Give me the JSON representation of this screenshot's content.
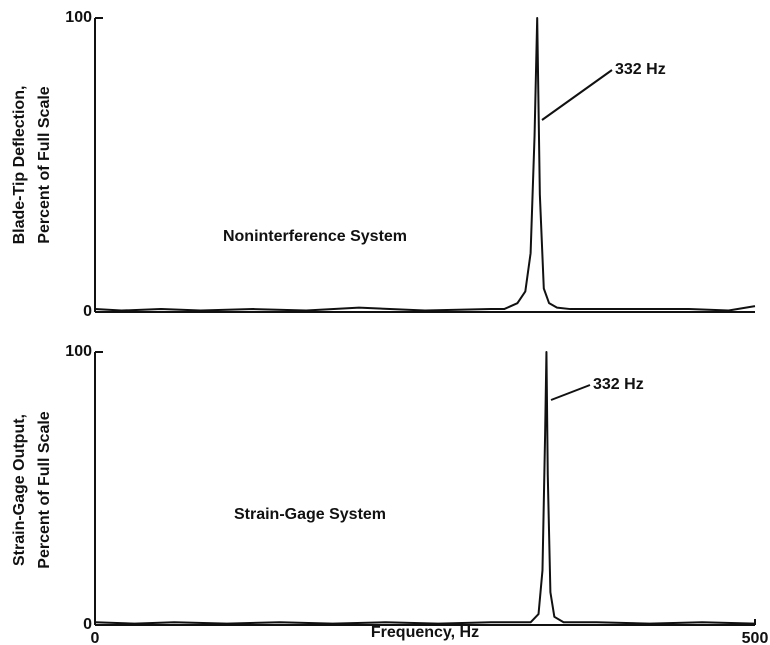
{
  "chart_data": [
    {
      "type": "line",
      "ylabel": [
        "Blade-Tip Deflection,",
        "Percent of Full Scale"
      ],
      "label": "Noninterference System",
      "annotation": "332 Hz",
      "xlim": [
        0,
        500
      ],
      "ylim": [
        0,
        100
      ],
      "yticks": [
        0,
        100
      ],
      "series": [
        {
          "name": "Noninterference System",
          "color": "#111111",
          "x": [
            0,
            20,
            50,
            80,
            120,
            160,
            200,
            250,
            300,
            310,
            320,
            326,
            330,
            333,
            335,
            337,
            340,
            344,
            350,
            360,
            400,
            450,
            480,
            500
          ],
          "values": [
            1,
            0.5,
            1,
            0.5,
            1,
            0.5,
            1.5,
            0.5,
            1,
            1,
            3,
            7,
            20,
            60,
            100,
            40,
            8,
            3,
            1.5,
            1,
            1,
            1,
            0.5,
            2
          ]
        }
      ]
    },
    {
      "type": "line",
      "ylabel": [
        "Strain-Gage Output,",
        "Percent of Full Scale"
      ],
      "label": "Strain-Gage System",
      "annotation": "332 Hz",
      "xlabel": "Frequency, Hz",
      "xlim": [
        0,
        500
      ],
      "ylim": [
        0,
        100
      ],
      "yticks": [
        0,
        100
      ],
      "xticks": [
        0,
        500
      ],
      "series": [
        {
          "name": "Strain-Gage System",
          "color": "#111111",
          "x": [
            0,
            30,
            60,
            100,
            140,
            180,
            220,
            260,
            300,
            330,
            336,
            339,
            341,
            342,
            343,
            345,
            348,
            355,
            380,
            420,
            460,
            500
          ],
          "values": [
            1,
            0.5,
            1,
            0.5,
            1,
            0.5,
            1,
            0.5,
            1,
            1,
            4,
            20,
            70,
            100,
            55,
            12,
            3,
            1,
            1,
            0.5,
            1,
            0.5
          ]
        }
      ]
    }
  ]
}
